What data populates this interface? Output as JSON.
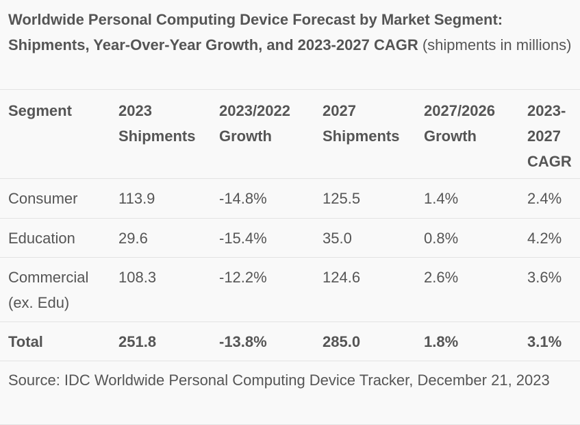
{
  "caption": {
    "bold": "Worldwide Personal Computing Device Forecast by Market Segment: Shipments, Year-Over-Year Growth, and 2023-2027 CAGR",
    "normal": " (shipments in millions)"
  },
  "table": {
    "headers": {
      "segment": "Segment",
      "ship2023": "2023 Shipments",
      "growth2023": "2023/2022 Growth",
      "ship2027": "2027 Shipments",
      "growth2027": "2027/2026 Growth",
      "cagr": "2023-2027 CAGR"
    },
    "rows": [
      {
        "segment": "Consumer",
        "ship2023": "113.9",
        "growth2023": "-14.8%",
        "ship2027": "125.5",
        "growth2027": "1.4%",
        "cagr": "2.4%"
      },
      {
        "segment": "Education",
        "ship2023": "29.6",
        "growth2023": "-15.4%",
        "ship2027": "35.0",
        "growth2027": "0.8%",
        "cagr": "4.2%"
      },
      {
        "segment": "Commercial (ex. Edu)",
        "ship2023": "108.3",
        "growth2023": "-12.2%",
        "ship2027": "124.6",
        "growth2027": "2.6%",
        "cagr": "3.6%"
      }
    ],
    "total": {
      "segment": "Total",
      "ship2023": "251.8",
      "growth2023": "-13.8%",
      "ship2027": "285.0",
      "growth2027": "1.8%",
      "cagr": "3.1%"
    }
  },
  "source": "Source: IDC Worldwide Personal Computing Device Tracker, December 21, 2023"
}
